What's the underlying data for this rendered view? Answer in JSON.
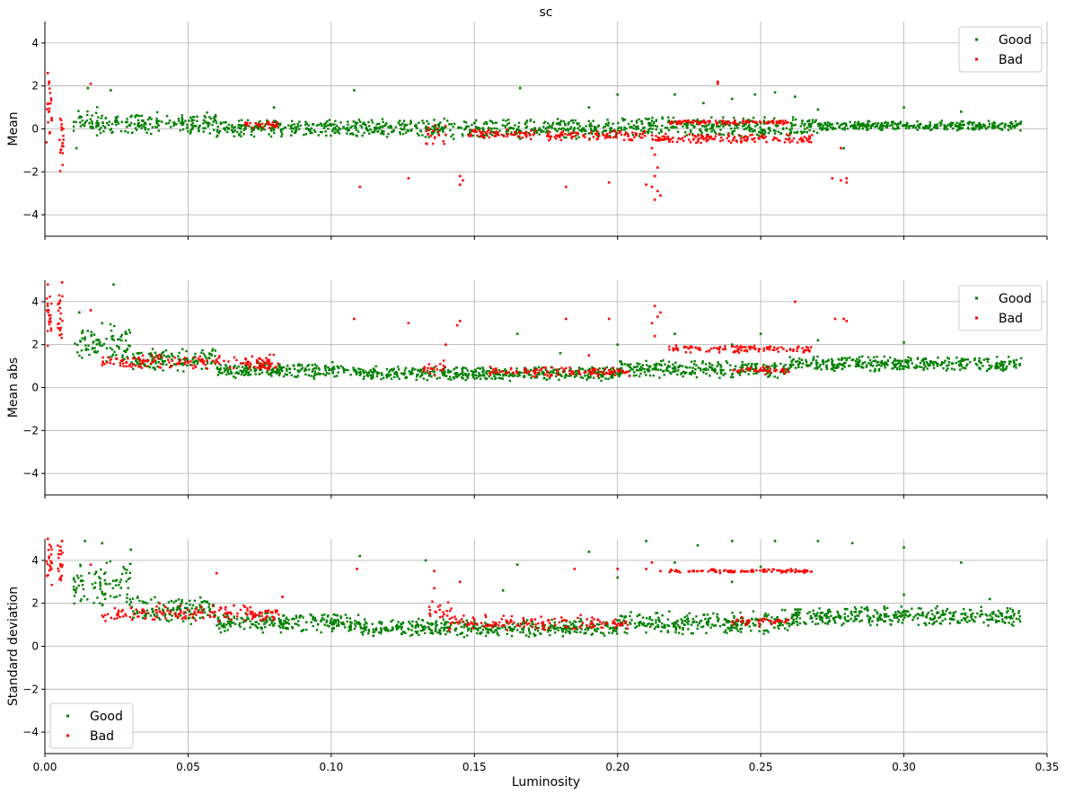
{
  "figure": {
    "title": "sc"
  },
  "colors": {
    "good": "#008000",
    "bad": "#ff0000",
    "grid": "#b0b0b0"
  },
  "chart_data": [
    {
      "type": "scatter",
      "id": "mean",
      "xlabel": "",
      "ylabel": "Mean",
      "xlim": [
        0.0,
        0.35
      ],
      "ylim": [
        -5,
        5
      ],
      "yticks": [
        -4,
        -2,
        0,
        2,
        4
      ],
      "ytick_labels": [
        "−4",
        "−2",
        "0",
        "2",
        "4"
      ],
      "grid": true,
      "legend": {
        "position": "top-right",
        "entries": [
          "Good",
          "Bad"
        ]
      },
      "series": [
        {
          "name": "Good",
          "color": "#008000",
          "bands": [
            [
              0.01,
              0.02,
              -0.6,
              1.2
            ],
            [
              0.02,
              0.06,
              -0.3,
              0.8
            ],
            [
              0.06,
              0.13,
              -0.4,
              0.5
            ],
            [
              0.13,
              0.2,
              -0.5,
              0.5
            ],
            [
              0.2,
              0.27,
              -0.4,
              0.6
            ],
            [
              0.27,
              0.341,
              -0.1,
              0.4
            ]
          ],
          "points": [
            [
              0.015,
              1.9
            ],
            [
              0.023,
              1.8
            ],
            [
              0.011,
              -0.9
            ],
            [
              0.108,
              1.8
            ],
            [
              0.166,
              1.9
            ],
            [
              0.2,
              1.6
            ],
            [
              0.22,
              1.6
            ],
            [
              0.248,
              1.6
            ],
            [
              0.255,
              1.7
            ],
            [
              0.24,
              1.4
            ],
            [
              0.23,
              1.2
            ],
            [
              0.262,
              1.5
            ],
            [
              0.27,
              0.9
            ],
            [
              0.279,
              -0.9
            ],
            [
              0.3,
              1.0
            ],
            [
              0.32,
              0.8
            ],
            [
              0.19,
              1.0
            ],
            [
              0.08,
              1.0
            ]
          ]
        },
        {
          "name": "Bad",
          "color": "#ff0000",
          "bands": [
            [
              0.0005,
              0.0025,
              -1.0,
              2.6
            ],
            [
              0.005,
              0.0065,
              -2.3,
              1.2
            ],
            [
              0.07,
              0.082,
              0.0,
              0.4
            ],
            [
              0.133,
              0.14,
              -1.0,
              0.3
            ],
            [
              0.148,
              0.172,
              -0.5,
              0.0
            ],
            [
              0.175,
              0.21,
              -0.6,
              0.0
            ],
            [
              0.212,
              0.268,
              -0.7,
              -0.2
            ],
            [
              0.218,
              0.26,
              0.2,
              0.4
            ]
          ],
          "points": [
            [
              0.001,
              2.6
            ],
            [
              0.0015,
              2.2
            ],
            [
              0.016,
              2.1
            ],
            [
              0.11,
              -2.7
            ],
            [
              0.127,
              -2.3
            ],
            [
              0.145,
              -2.2
            ],
            [
              0.145,
              -2.6
            ],
            [
              0.146,
              -2.4
            ],
            [
              0.182,
              -2.7
            ],
            [
              0.197,
              -2.5
            ],
            [
              0.21,
              -2.6
            ],
            [
              0.212,
              -2.7
            ],
            [
              0.213,
              -3.3
            ],
            [
              0.214,
              -2.9
            ],
            [
              0.215,
              -3.1
            ],
            [
              0.213,
              -1.2
            ],
            [
              0.214,
              -1.8
            ],
            [
              0.213,
              -2.2
            ],
            [
              0.235,
              2.2
            ],
            [
              0.235,
              2.1
            ],
            [
              0.275,
              -2.3
            ],
            [
              0.278,
              -2.4
            ],
            [
              0.28,
              -2.3
            ],
            [
              0.28,
              -2.5
            ],
            [
              0.278,
              -0.9
            ],
            [
              0.212,
              -0.9
            ]
          ]
        }
      ]
    },
    {
      "type": "scatter",
      "id": "mean-abs",
      "xlabel": "",
      "ylabel": "Mean abs",
      "xlim": [
        0.0,
        0.35
      ],
      "ylim": [
        -5,
        5
      ],
      "yticks": [
        -4,
        -2,
        0,
        2,
        4
      ],
      "ytick_labels": [
        "−4",
        "−2",
        "0",
        "2",
        "4"
      ],
      "grid": true,
      "legend": {
        "position": "top-right",
        "entries": [
          "Good",
          "Bad"
        ]
      },
      "series": [
        {
          "name": "Good",
          "color": "#008000",
          "bands": [
            [
              0.01,
              0.03,
              1.2,
              3.0
            ],
            [
              0.03,
              0.06,
              0.7,
              1.9
            ],
            [
              0.06,
              0.11,
              0.4,
              1.2
            ],
            [
              0.11,
              0.2,
              0.3,
              1.0
            ],
            [
              0.2,
              0.26,
              0.4,
              1.3
            ],
            [
              0.26,
              0.341,
              0.7,
              1.5
            ]
          ],
          "points": [
            [
              0.024,
              4.8
            ],
            [
              0.012,
              3.5
            ],
            [
              0.02,
              3.0
            ],
            [
              0.165,
              2.5
            ],
            [
              0.2,
              2.0
            ],
            [
              0.22,
              2.5
            ],
            [
              0.25,
              2.5
            ],
            [
              0.27,
              2.2
            ],
            [
              0.3,
              2.1
            ],
            [
              0.24,
              2.0
            ],
            [
              0.18,
              1.6
            ]
          ]
        },
        {
          "name": "Bad",
          "color": "#ff0000",
          "bands": [
            [
              0.0005,
              0.0025,
              1.8,
              4.8
            ],
            [
              0.0045,
              0.0065,
              1.9,
              4.8
            ],
            [
              0.02,
              0.08,
              0.8,
              1.6
            ],
            [
              0.07,
              0.082,
              0.8,
              1.2
            ],
            [
              0.132,
              0.14,
              0.5,
              1.4
            ],
            [
              0.155,
              0.205,
              0.5,
              1.0
            ],
            [
              0.218,
              0.268,
              1.6,
              2.0
            ],
            [
              0.24,
              0.26,
              0.6,
              1.0
            ]
          ],
          "points": [
            [
              0.001,
              4.8
            ],
            [
              0.006,
              4.9
            ],
            [
              0.016,
              3.6
            ],
            [
              0.108,
              3.2
            ],
            [
              0.127,
              3.0
            ],
            [
              0.144,
              2.9
            ],
            [
              0.145,
              3.1
            ],
            [
              0.182,
              3.2
            ],
            [
              0.197,
              3.2
            ],
            [
              0.212,
              3.0
            ],
            [
              0.213,
              3.8
            ],
            [
              0.214,
              3.3
            ],
            [
              0.215,
              3.5
            ],
            [
              0.213,
              2.4
            ],
            [
              0.262,
              4.0
            ],
            [
              0.276,
              3.2
            ],
            [
              0.279,
              3.2
            ],
            [
              0.28,
              3.1
            ],
            [
              0.14,
              2.0
            ],
            [
              0.19,
              1.5
            ]
          ]
        }
      ]
    },
    {
      "type": "scatter",
      "id": "std",
      "xlabel": "Luminosity",
      "ylabel": "Standard deviation",
      "xlim": [
        0.0,
        0.35
      ],
      "ylim": [
        -5,
        5
      ],
      "yticks": [
        -4,
        -2,
        0,
        2,
        4
      ],
      "ytick_labels": [
        "−4",
        "−2",
        "0",
        "2",
        "4"
      ],
      "xticks": [
        0.0,
        0.05,
        0.1,
        0.15,
        0.2,
        0.25,
        0.3,
        0.35
      ],
      "xtick_labels": [
        "0.00",
        "0.05",
        "0.10",
        "0.15",
        "0.20",
        "0.25",
        "0.30",
        "0.35"
      ],
      "grid": true,
      "legend": {
        "position": "bottom-left",
        "entries": [
          "Good",
          "Bad"
        ]
      },
      "series": [
        {
          "name": "Good",
          "color": "#008000",
          "bands": [
            [
              0.01,
              0.03,
              1.8,
              4.0
            ],
            [
              0.03,
              0.06,
              1.0,
              2.4
            ],
            [
              0.06,
              0.11,
              0.6,
              1.6
            ],
            [
              0.11,
              0.2,
              0.4,
              1.3
            ],
            [
              0.2,
              0.26,
              0.5,
              1.7
            ],
            [
              0.26,
              0.341,
              0.9,
              1.9
            ]
          ],
          "points": [
            [
              0.014,
              4.9
            ],
            [
              0.02,
              4.8
            ],
            [
              0.03,
              4.5
            ],
            [
              0.11,
              4.2
            ],
            [
              0.133,
              4.0
            ],
            [
              0.165,
              3.8
            ],
            [
              0.19,
              4.4
            ],
            [
              0.21,
              4.9
            ],
            [
              0.228,
              4.7
            ],
            [
              0.24,
              4.9
            ],
            [
              0.255,
              4.9
            ],
            [
              0.27,
              4.9
            ],
            [
              0.282,
              4.8
            ],
            [
              0.3,
              4.6
            ],
            [
              0.32,
              3.9
            ],
            [
              0.22,
              3.9
            ],
            [
              0.25,
              3.7
            ],
            [
              0.24,
              3.0
            ],
            [
              0.2,
              3.2
            ],
            [
              0.16,
              2.6
            ],
            [
              0.3,
              2.4
            ],
            [
              0.33,
              2.2
            ]
          ]
        },
        {
          "name": "Bad",
          "color": "#ff0000",
          "bands": [
            [
              0.0005,
              0.0025,
              2.6,
              5.0
            ],
            [
              0.0045,
              0.0065,
              2.6,
              4.9
            ],
            [
              0.02,
              0.08,
              1.1,
              2.0
            ],
            [
              0.07,
              0.082,
              1.2,
              1.8
            ],
            [
              0.134,
              0.142,
              1.1,
              2.2
            ],
            [
              0.14,
              0.205,
              0.7,
              1.5
            ],
            [
              0.218,
              0.268,
              3.4,
              3.6
            ],
            [
              0.24,
              0.26,
              0.9,
              1.4
            ]
          ],
          "points": [
            [
              0.001,
              5.0
            ],
            [
              0.006,
              4.9
            ],
            [
              0.016,
              3.8
            ],
            [
              0.109,
              3.6
            ],
            [
              0.136,
              3.5
            ],
            [
              0.145,
              3.0
            ],
            [
              0.185,
              3.6
            ],
            [
              0.2,
              3.6
            ],
            [
              0.21,
              3.6
            ],
            [
              0.212,
              3.9
            ],
            [
              0.215,
              3.5
            ],
            [
              0.136,
              2.7
            ],
            [
              0.06,
              3.4
            ],
            [
              0.083,
              2.3
            ],
            [
              0.066,
              1.9
            ]
          ]
        }
      ]
    }
  ]
}
